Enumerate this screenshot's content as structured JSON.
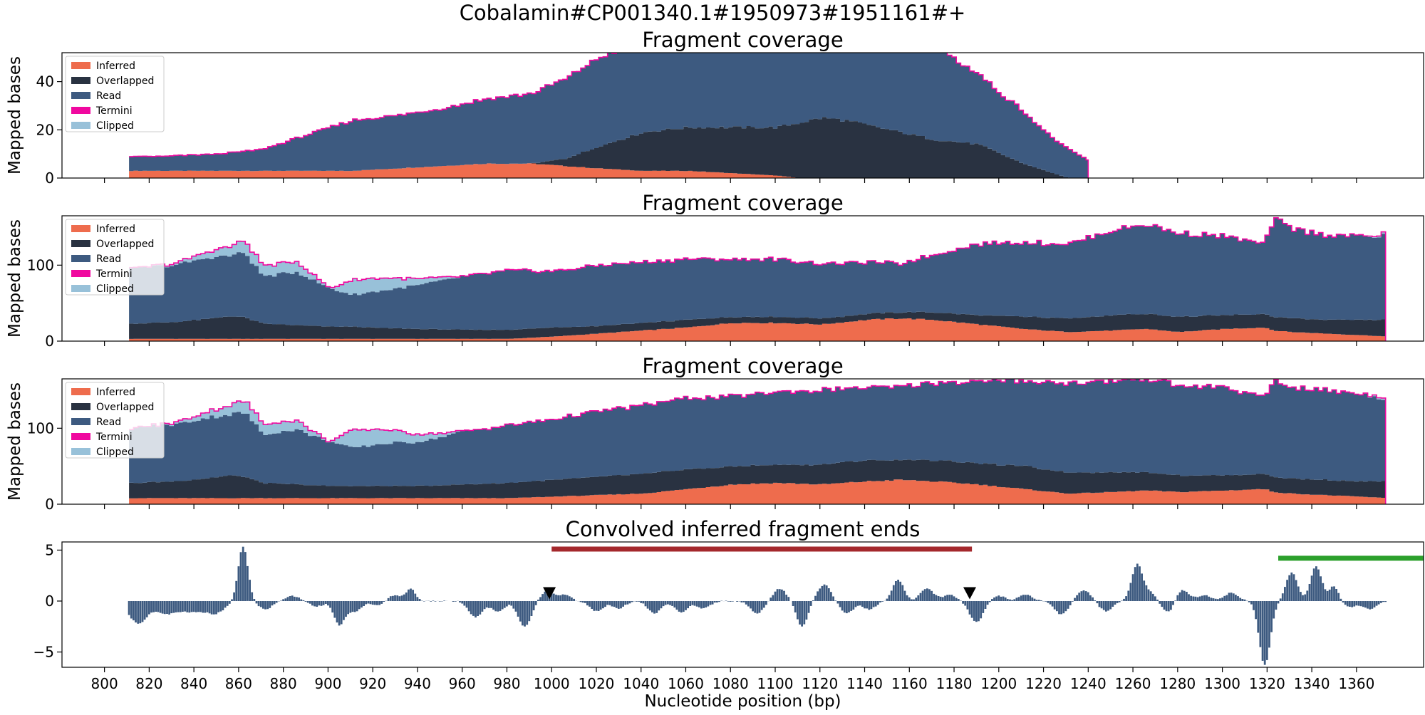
{
  "suptitle": "Cobalamin#CP001340.1#1950973#1951161#+",
  "colors": {
    "inferred": "#ee6c4d",
    "overlapped": "#293241",
    "read": "#3d5a80",
    "termini": "#f0089f",
    "clipped": "#98c1d9",
    "region_red": "#a4282c",
    "region_green": "#2ca02c",
    "marker": "#000000"
  },
  "chart_data": [
    {
      "type": "area",
      "title": "Fragment coverage",
      "ylabel": "Mapped bases",
      "xlim": [
        781,
        1390
      ],
      "ylim": [
        0,
        52
      ],
      "yticks": [
        0,
        20,
        40
      ],
      "legend": {
        "placement": "upper-left",
        "entries": [
          "Inferred",
          "Overlapped",
          "Read",
          "Termini",
          "Clipped"
        ]
      },
      "series": {
        "x": [
          811,
          825,
          850,
          870,
          890,
          910,
          930,
          950,
          970,
          990,
          1005,
          1020,
          1040,
          1060,
          1080,
          1100,
          1110,
          1120,
          1130,
          1140,
          1150,
          1160,
          1170,
          1180,
          1190,
          1200,
          1210,
          1220,
          1230,
          1240
        ],
        "inferred": [
          3,
          3,
          3,
          3,
          3,
          3,
          4,
          5,
          6,
          6,
          5,
          4,
          3,
          3,
          2,
          1,
          0,
          0,
          0,
          0,
          0,
          0,
          0,
          0,
          0,
          0,
          0,
          0,
          0,
          0
        ],
        "overlapped": [
          0,
          0,
          0,
          0,
          0,
          0,
          0,
          0,
          0,
          0,
          3,
          9,
          16,
          18,
          19,
          20,
          23,
          25,
          24,
          22,
          20,
          18,
          16,
          15,
          14,
          10,
          6,
          3,
          0,
          0
        ],
        "read": [
          6,
          6,
          7,
          9,
          15,
          21,
          22,
          24,
          27,
          29,
          33,
          37,
          38,
          40,
          41,
          42,
          48,
          53,
          53,
          53,
          51,
          46,
          41,
          34,
          29,
          25,
          22,
          16,
          12,
          7
        ],
        "clipped": [
          0,
          0,
          0,
          0,
          0,
          0,
          0,
          0,
          0,
          0,
          0,
          0,
          0,
          0,
          0,
          0,
          0,
          0,
          0,
          0,
          0,
          0,
          0,
          0,
          0,
          0,
          0,
          0,
          0,
          0
        ],
        "end": 1240
      }
    },
    {
      "type": "area",
      "title": "Fragment coverage",
      "ylabel": "Mapped bases",
      "xlim": [
        781,
        1390
      ],
      "ylim": [
        0,
        165
      ],
      "yticks": [
        0,
        100
      ],
      "legend": {
        "placement": "upper-left",
        "entries": [
          "Inferred",
          "Overlapped",
          "Read",
          "Termini",
          "Clipped"
        ]
      },
      "series": {
        "x": [
          811,
          830,
          845,
          855,
          862,
          870,
          885,
          900,
          910,
          925,
          940,
          960,
          980,
          1000,
          1020,
          1040,
          1060,
          1080,
          1100,
          1120,
          1140,
          1155,
          1170,
          1190,
          1210,
          1230,
          1250,
          1265,
          1280,
          1300,
          1318,
          1322,
          1330,
          1345,
          1360,
          1373
        ],
        "inferred": [
          3,
          3,
          3,
          3,
          3,
          3,
          3,
          3,
          3,
          3,
          3,
          3,
          3,
          6,
          10,
          14,
          18,
          24,
          24,
          22,
          28,
          30,
          28,
          22,
          16,
          12,
          14,
          16,
          12,
          16,
          18,
          14,
          12,
          10,
          8,
          6
        ],
        "overlapped": [
          20,
          22,
          26,
          30,
          28,
          20,
          18,
          16,
          16,
          14,
          13,
          12,
          12,
          12,
          10,
          10,
          10,
          8,
          8,
          8,
          8,
          8,
          10,
          12,
          16,
          18,
          20,
          20,
          20,
          18,
          18,
          18,
          18,
          18,
          20,
          22
        ],
        "read": [
          72,
          75,
          80,
          80,
          85,
          62,
          70,
          50,
          42,
          50,
          58,
          70,
          78,
          74,
          80,
          80,
          80,
          76,
          76,
          72,
          68,
          64,
          76,
          94,
          98,
          98,
          112,
          118,
          110,
          104,
          92,
          130,
          118,
          112,
          110,
          110
        ],
        "clipped": [
          0,
          2,
          8,
          12,
          16,
          14,
          14,
          0,
          20,
          16,
          8,
          0,
          0,
          0,
          0,
          0,
          0,
          0,
          0,
          0,
          0,
          0,
          0,
          0,
          0,
          0,
          0,
          0,
          0,
          0,
          0,
          0,
          0,
          0,
          0,
          3
        ],
        "end": 1373
      }
    },
    {
      "type": "area",
      "title": "Fragment coverage",
      "ylabel": "Mapped bases",
      "xlim": [
        781,
        1390
      ],
      "ylim": [
        0,
        165
      ],
      "yticks": [
        0,
        100
      ],
      "legend": {
        "placement": "upper-left",
        "entries": [
          "Inferred",
          "Overlapped",
          "Read",
          "Termini",
          "Clipped"
        ]
      },
      "series": {
        "x": [
          811,
          830,
          845,
          855,
          862,
          870,
          885,
          900,
          910,
          925,
          940,
          960,
          980,
          1000,
          1020,
          1040,
          1060,
          1080,
          1100,
          1120,
          1140,
          1155,
          1170,
          1190,
          1210,
          1230,
          1250,
          1265,
          1280,
          1300,
          1318,
          1322,
          1330,
          1345,
          1360,
          1373
        ],
        "inferred": [
          8,
          8,
          8,
          8,
          8,
          8,
          8,
          8,
          8,
          8,
          8,
          8,
          8,
          10,
          12,
          14,
          20,
          26,
          28,
          26,
          30,
          32,
          30,
          26,
          20,
          14,
          16,
          18,
          16,
          18,
          20,
          16,
          14,
          12,
          10,
          8
        ],
        "overlapped": [
          20,
          22,
          26,
          30,
          28,
          20,
          18,
          16,
          16,
          16,
          16,
          18,
          20,
          22,
          24,
          26,
          26,
          24,
          24,
          26,
          28,
          26,
          28,
          28,
          30,
          28,
          26,
          24,
          22,
          20,
          20,
          20,
          20,
          20,
          20,
          22
        ],
        "read": [
          72,
          75,
          80,
          80,
          85,
          64,
          72,
          58,
          50,
          56,
          58,
          70,
          76,
          80,
          86,
          90,
          94,
          92,
          96,
          98,
          96,
          96,
          102,
          108,
          112,
          118,
          120,
          124,
          118,
          116,
          100,
          128,
          120,
          118,
          116,
          108
        ],
        "clipped": [
          0,
          2,
          8,
          12,
          16,
          14,
          12,
          0,
          24,
          18,
          10,
          0,
          0,
          0,
          0,
          0,
          0,
          0,
          0,
          0,
          0,
          0,
          0,
          0,
          0,
          0,
          0,
          0,
          0,
          0,
          0,
          0,
          0,
          0,
          0,
          3
        ],
        "end": 1373
      }
    },
    {
      "type": "bar",
      "title": "Convolved inferred fragment ends",
      "xlabel": "Nucleotide position (bp)",
      "xlim": [
        781,
        1390
      ],
      "ylim": [
        -6.5,
        5.8
      ],
      "yticks": [
        -5,
        0,
        5
      ],
      "xticks": [
        800,
        820,
        840,
        860,
        880,
        900,
        920,
        940,
        960,
        980,
        1000,
        1020,
        1040,
        1060,
        1080,
        1100,
        1120,
        1140,
        1160,
        1180,
        1200,
        1220,
        1240,
        1260,
        1280,
        1300,
        1320,
        1340,
        1360
      ],
      "bars_start": 811,
      "bars_end": 1373,
      "peaks": [
        {
          "x": 815,
          "h": -2.2,
          "w": 4
        },
        {
          "x": 828,
          "h": -1.2,
          "w": 5
        },
        {
          "x": 840,
          "h": -1.0,
          "w": 5
        },
        {
          "x": 850,
          "h": -1.1,
          "w": 4
        },
        {
          "x": 862,
          "h": 5.3,
          "w": 2.2
        },
        {
          "x": 872,
          "h": -0.8,
          "w": 3
        },
        {
          "x": 884,
          "h": 0.5,
          "w": 3
        },
        {
          "x": 895,
          "h": -0.5,
          "w": 3
        },
        {
          "x": 905,
          "h": -2.3,
          "w": 2.5
        },
        {
          "x": 912,
          "h": -1.0,
          "w": 3
        },
        {
          "x": 922,
          "h": -0.4,
          "w": 3
        },
        {
          "x": 930,
          "h": 0.6,
          "w": 3
        },
        {
          "x": 937,
          "h": 1.2,
          "w": 2
        },
        {
          "x": 966,
          "h": -1.6,
          "w": 3
        },
        {
          "x": 976,
          "h": -1.0,
          "w": 3
        },
        {
          "x": 988,
          "h": -2.5,
          "w": 3
        },
        {
          "x": 998,
          "h": 1.0,
          "w": 3
        },
        {
          "x": 1006,
          "h": 0.6,
          "w": 2.5
        },
        {
          "x": 1020,
          "h": -1.0,
          "w": 3
        },
        {
          "x": 1030,
          "h": -0.7,
          "w": 3
        },
        {
          "x": 1046,
          "h": -1.2,
          "w": 3
        },
        {
          "x": 1058,
          "h": -1.1,
          "w": 3
        },
        {
          "x": 1068,
          "h": -0.7,
          "w": 3
        },
        {
          "x": 1092,
          "h": -1.2,
          "w": 3
        },
        {
          "x": 1102,
          "h": 1.2,
          "w": 3
        },
        {
          "x": 1112,
          "h": -2.5,
          "w": 2.5
        },
        {
          "x": 1122,
          "h": 1.6,
          "w": 3
        },
        {
          "x": 1132,
          "h": -1.2,
          "w": 3
        },
        {
          "x": 1142,
          "h": -0.8,
          "w": 3
        },
        {
          "x": 1155,
          "h": 2.1,
          "w": 2.5
        },
        {
          "x": 1168,
          "h": 1.2,
          "w": 3
        },
        {
          "x": 1178,
          "h": 0.6,
          "w": 3
        },
        {
          "x": 1190,
          "h": -2.1,
          "w": 3
        },
        {
          "x": 1200,
          "h": 0.5,
          "w": 3
        },
        {
          "x": 1212,
          "h": 0.6,
          "w": 3
        },
        {
          "x": 1228,
          "h": -1.3,
          "w": 3
        },
        {
          "x": 1238,
          "h": 1.1,
          "w": 3
        },
        {
          "x": 1248,
          "h": -1.0,
          "w": 3
        },
        {
          "x": 1262,
          "h": 3.6,
          "w": 2.5
        },
        {
          "x": 1268,
          "h": 0.8,
          "w": 2
        },
        {
          "x": 1276,
          "h": -1.2,
          "w": 2.5
        },
        {
          "x": 1282,
          "h": 1.1,
          "w": 3
        },
        {
          "x": 1292,
          "h": 0.6,
          "w": 3
        },
        {
          "x": 1304,
          "h": 0.8,
          "w": 3
        },
        {
          "x": 1319,
          "h": -6.3,
          "w": 2.5
        },
        {
          "x": 1331,
          "h": 2.8,
          "w": 2.5
        },
        {
          "x": 1342,
          "h": 3.4,
          "w": 2.5
        },
        {
          "x": 1350,
          "h": 1.5,
          "w": 2
        },
        {
          "x": 1357,
          "h": -0.6,
          "w": 3
        },
        {
          "x": 1366,
          "h": -0.8,
          "w": 3
        }
      ],
      "regions": [
        {
          "color": "region_red",
          "x0": 1000,
          "x1": 1188,
          "y": 5.1
        },
        {
          "color": "region_green",
          "x0": 1325,
          "x1": 1390,
          "y": 4.2
        }
      ],
      "markers": [
        {
          "x": 999,
          "y": 0.8
        },
        {
          "x": 1187,
          "y": 0.8
        }
      ]
    }
  ]
}
